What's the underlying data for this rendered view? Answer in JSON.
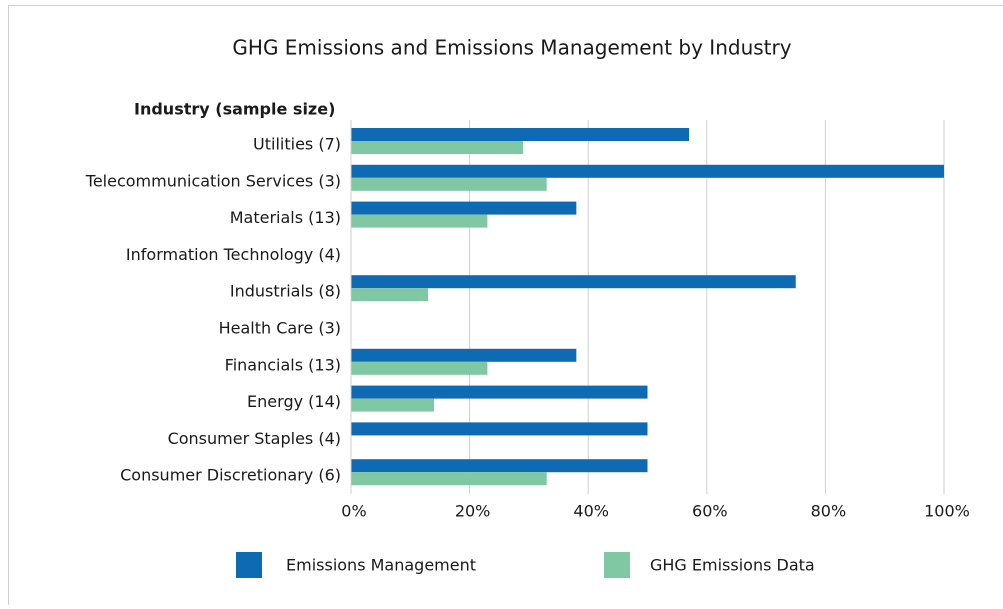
{
  "chart_data": {
    "type": "hbar",
    "title": "GHG Emissions and Emissions Management by Industry",
    "y_label": "Industry (sample size)",
    "categories": [
      "Utilities (7)",
      "Telecommunication Services (3)",
      "Materials (13)",
      "Information Technology (4)",
      "Industrials (8)",
      "Health Care (3)",
      "Financials (13)",
      "Energy (14)",
      "Consumer Staples (4)",
      "Consumer Discretionary (6)"
    ],
    "series": [
      {
        "name": "Emissions Management",
        "color": "#0f6ab4",
        "values": [
          57,
          100,
          38,
          0,
          75,
          0,
          38,
          50,
          50,
          50
        ]
      },
      {
        "name": "GHG Emissions Data",
        "color": "#7fc8a3",
        "values": [
          29,
          33,
          23,
          0,
          13,
          0,
          23,
          14,
          0,
          33
        ]
      }
    ],
    "xlim": [
      0,
      100
    ],
    "xticks": [
      {
        "value": 0,
        "label": "0%"
      },
      {
        "value": 20,
        "label": "20%"
      },
      {
        "value": 40,
        "label": "40%"
      },
      {
        "value": 60,
        "label": "60%"
      },
      {
        "value": 80,
        "label": "80%"
      },
      {
        "value": 100,
        "label": "100%"
      }
    ],
    "grid": true
  }
}
